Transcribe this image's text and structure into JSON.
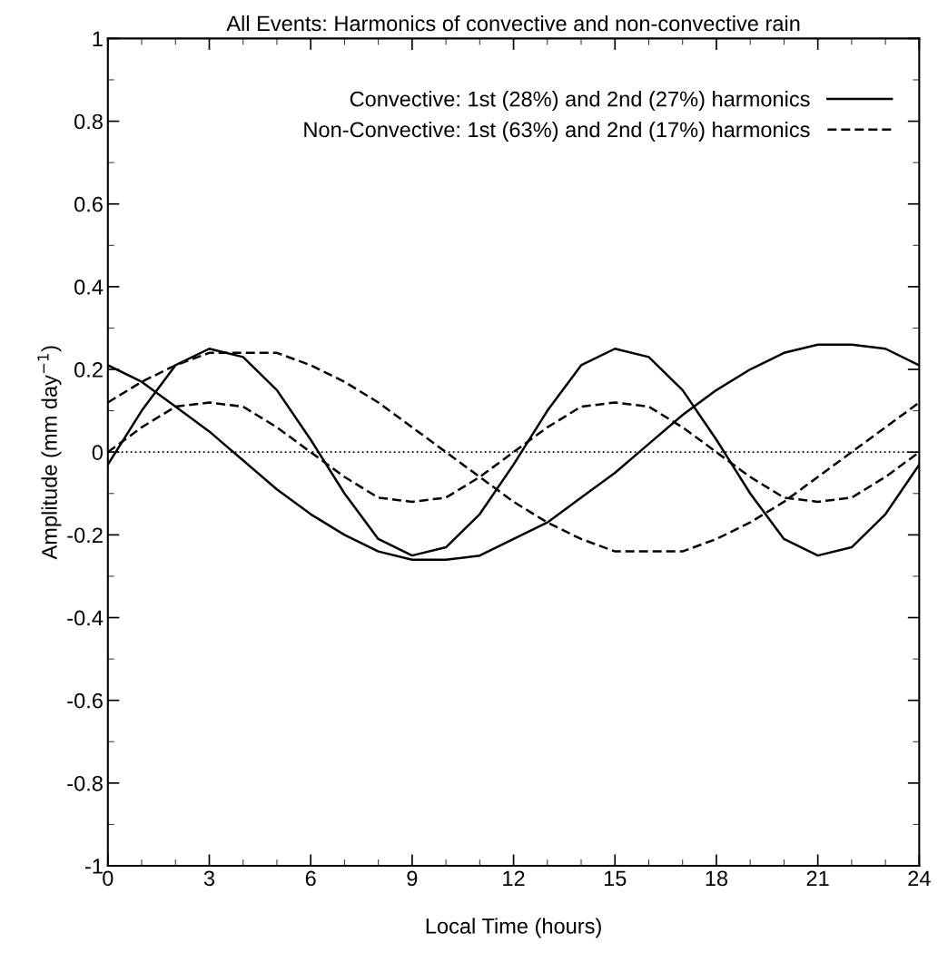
{
  "chart_data": {
    "type": "line",
    "title": "All Events: Harmonics of convective and non-convective rain",
    "xlabel": "Local Time (hours)",
    "ylabel": "Amplitude (mm day$^{−1}$)",
    "x": [
      0,
      1,
      2,
      3,
      4,
      5,
      6,
      7,
      8,
      9,
      10,
      11,
      12,
      13,
      14,
      15,
      16,
      17,
      18,
      19,
      20,
      21,
      22,
      23,
      24
    ],
    "series": [
      {
        "name": "Convective: 1st (28%) and 2nd (27%) harmonics",
        "color": "#000000",
        "line_style": "solid",
        "values": [
          0.21,
          0.17,
          0.11,
          0.05,
          -0.02,
          -0.09,
          -0.15,
          -0.2,
          -0.24,
          -0.26,
          -0.26,
          -0.25,
          -0.21,
          -0.17,
          -0.11,
          -0.05,
          0.02,
          0.09,
          0.15,
          0.2,
          0.24,
          0.26,
          0.26,
          0.25,
          0.21
        ]
      },
      {
        "color": "#000000",
        "line_style": "solid",
        "values": [
          -0.03,
          0.1,
          0.21,
          0.25,
          0.23,
          0.15,
          0.03,
          -0.1,
          -0.21,
          -0.25,
          -0.23,
          -0.15,
          -0.03,
          0.1,
          0.21,
          0.25,
          0.23,
          0.15,
          0.03,
          -0.1,
          -0.21,
          -0.25,
          -0.23,
          -0.15,
          -0.03
        ]
      },
      {
        "name": "Non-Convective: 1st (63%) and 2nd (17%) harmonics",
        "color": "#000000",
        "line_style": "dashed",
        "values": [
          0.12,
          0.17,
          0.21,
          0.24,
          0.24,
          0.24,
          0.21,
          0.17,
          0.12,
          0.06,
          0,
          -0.06,
          -0.12,
          -0.17,
          -0.21,
          -0.24,
          -0.24,
          -0.24,
          -0.21,
          -0.17,
          -0.12,
          -0.06,
          0,
          0.06,
          0.12
        ]
      },
      {
        "color": "#000000",
        "line_style": "dashed",
        "values": [
          0,
          0.06,
          0.11,
          0.12,
          0.11,
          0.06,
          0,
          -0.06,
          -0.11,
          -0.12,
          -0.11,
          -0.06,
          0,
          0.06,
          0.11,
          0.12,
          0.11,
          0.06,
          0,
          -0.06,
          -0.11,
          -0.12,
          -0.11,
          -0.06,
          0
        ]
      }
    ],
    "ref_lines": [
      {
        "axis": "y",
        "value": 0,
        "color": "#000000",
        "line_style": "dotted"
      }
    ],
    "xlim": [
      0,
      24
    ],
    "xticks": [
      0,
      3,
      6,
      9,
      12,
      15,
      18,
      21,
      24
    ],
    "ylim": [
      -1,
      1
    ],
    "yticks": [
      -1,
      -0.8,
      -0.6,
      -0.4,
      -0.2,
      0,
      0.2,
      0.4,
      0.6,
      0.8,
      1
    ],
    "grid": false,
    "legend": "top right",
    "marker": "none"
  }
}
